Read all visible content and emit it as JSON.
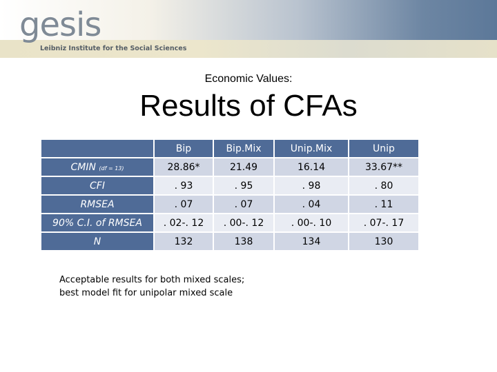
{
  "header": {
    "logo_text": "gesis",
    "logo_subtitle": "Leibniz Institute for the Social Sciences"
  },
  "slide": {
    "subtitle": "Economic Values:",
    "title": "Results of CFAs",
    "note_line1": "Acceptable results for both mixed scales;",
    "note_line2": "best model fit for unipolar mixed scale"
  },
  "table": {
    "columns": [
      "Bip",
      "Bip.Mix",
      "Unip.Mix",
      "Unip"
    ],
    "rows": [
      {
        "label": "CMIN",
        "label_sub": "(df = 13)",
        "values": [
          "28.86*",
          "21.49",
          "16.14",
          "33.67**"
        ]
      },
      {
        "label": "CFI",
        "label_sub": "",
        "values": [
          ". 93",
          ". 95",
          ". 98",
          ". 80"
        ]
      },
      {
        "label": "RMSEA",
        "label_sub": "",
        "values": [
          ". 07",
          ". 07",
          ". 04",
          ". 11"
        ]
      },
      {
        "label": "90% C.I. of RMSEA",
        "label_sub": "",
        "values": [
          ". 02-. 12",
          ". 00-. 12",
          ". 00-. 10",
          ". 07-. 17"
        ]
      },
      {
        "label": "N",
        "label_sub": "",
        "values": [
          "132",
          "138",
          "134",
          "130"
        ]
      }
    ]
  },
  "colors": {
    "table_header": "#4f6b97",
    "row_dark": "#d0d6e4",
    "row_light": "#e9ecf3"
  }
}
